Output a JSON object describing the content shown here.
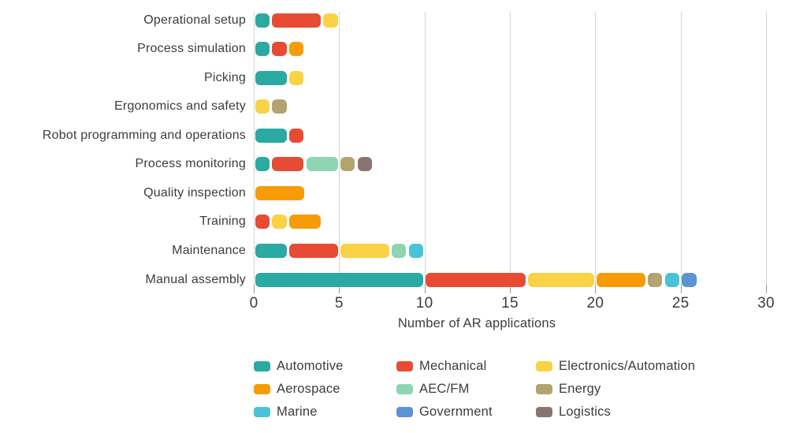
{
  "chart_data": {
    "type": "bar",
    "orientation": "horizontal",
    "stacked": true,
    "title": "",
    "xlabel": "Number of AR applications",
    "xlim": [
      0,
      30
    ],
    "xticks": [
      0,
      5,
      10,
      15,
      20,
      25,
      30
    ],
    "grid": "vertical",
    "legend_position": "bottom",
    "series": [
      {
        "name": "Automotive",
        "color": "#2BA9A3"
      },
      {
        "name": "Mechanical",
        "color": "#E74B33"
      },
      {
        "name": "Electronics/Automation",
        "color": "#FAD245"
      },
      {
        "name": "Aerospace",
        "color": "#F89B08"
      },
      {
        "name": "AEC/FM",
        "color": "#8DD5B3"
      },
      {
        "name": "Energy",
        "color": "#B3A36E"
      },
      {
        "name": "Marine",
        "color": "#48C3D8"
      },
      {
        "name": "Government",
        "color": "#5C93D4"
      },
      {
        "name": "Logistics",
        "color": "#8A7471"
      }
    ],
    "categories_top_to_bottom": [
      "Operational setup",
      "Process simulation",
      "Picking",
      "Ergonomics and safety",
      "Robot programming and operations",
      "Process monitoring",
      "Quality inspection",
      "Training",
      "Maintenance",
      "Manual assembly"
    ],
    "rows": [
      {
        "category": "Operational setup",
        "total": 5,
        "segments": [
          {
            "series": "Automotive",
            "value": 1
          },
          {
            "series": "Mechanical",
            "value": 3
          },
          {
            "series": "Electronics/Automation",
            "value": 1
          }
        ]
      },
      {
        "category": "Process simulation",
        "total": 3,
        "segments": [
          {
            "series": "Automotive",
            "value": 1
          },
          {
            "series": "Mechanical",
            "value": 1
          },
          {
            "series": "Aerospace",
            "value": 1
          }
        ]
      },
      {
        "category": "Picking",
        "total": 3,
        "segments": [
          {
            "series": "Automotive",
            "value": 2
          },
          {
            "series": "Electronics/Automation",
            "value": 1
          }
        ]
      },
      {
        "category": "Ergonomics and safety",
        "total": 2,
        "segments": [
          {
            "series": "Electronics/Automation",
            "value": 1
          },
          {
            "series": "Energy",
            "value": 1
          }
        ]
      },
      {
        "category": "Robot programming and operations",
        "total": 3,
        "segments": [
          {
            "series": "Automotive",
            "value": 2
          },
          {
            "series": "Mechanical",
            "value": 1
          }
        ]
      },
      {
        "category": "Process monitoring",
        "total": 7,
        "segments": [
          {
            "series": "Automotive",
            "value": 1
          },
          {
            "series": "Mechanical",
            "value": 2
          },
          {
            "series": "AEC/FM",
            "value": 2
          },
          {
            "series": "Energy",
            "value": 1
          },
          {
            "series": "Logistics",
            "value": 1
          }
        ]
      },
      {
        "category": "Quality inspection",
        "total": 3,
        "segments": [
          {
            "series": "Aerospace",
            "value": 3
          }
        ]
      },
      {
        "category": "Training",
        "total": 4,
        "segments": [
          {
            "series": "Mechanical",
            "value": 1
          },
          {
            "series": "Electronics/Automation",
            "value": 1
          },
          {
            "series": "Aerospace",
            "value": 2
          }
        ]
      },
      {
        "category": "Maintenance",
        "total": 10,
        "segments": [
          {
            "series": "Automotive",
            "value": 2
          },
          {
            "series": "Mechanical",
            "value": 3
          },
          {
            "series": "Electronics/Automation",
            "value": 3
          },
          {
            "series": "AEC/FM",
            "value": 1
          },
          {
            "series": "Marine",
            "value": 1
          }
        ]
      },
      {
        "category": "Manual assembly",
        "total": 26,
        "segments": [
          {
            "series": "Automotive",
            "value": 10
          },
          {
            "series": "Mechanical",
            "value": 6
          },
          {
            "series": "Electronics/Automation",
            "value": 4
          },
          {
            "series": "Aerospace",
            "value": 3
          },
          {
            "series": "Energy",
            "value": 1
          },
          {
            "series": "Marine",
            "value": 1
          },
          {
            "series": "Government",
            "value": 1
          }
        ]
      }
    ]
  }
}
